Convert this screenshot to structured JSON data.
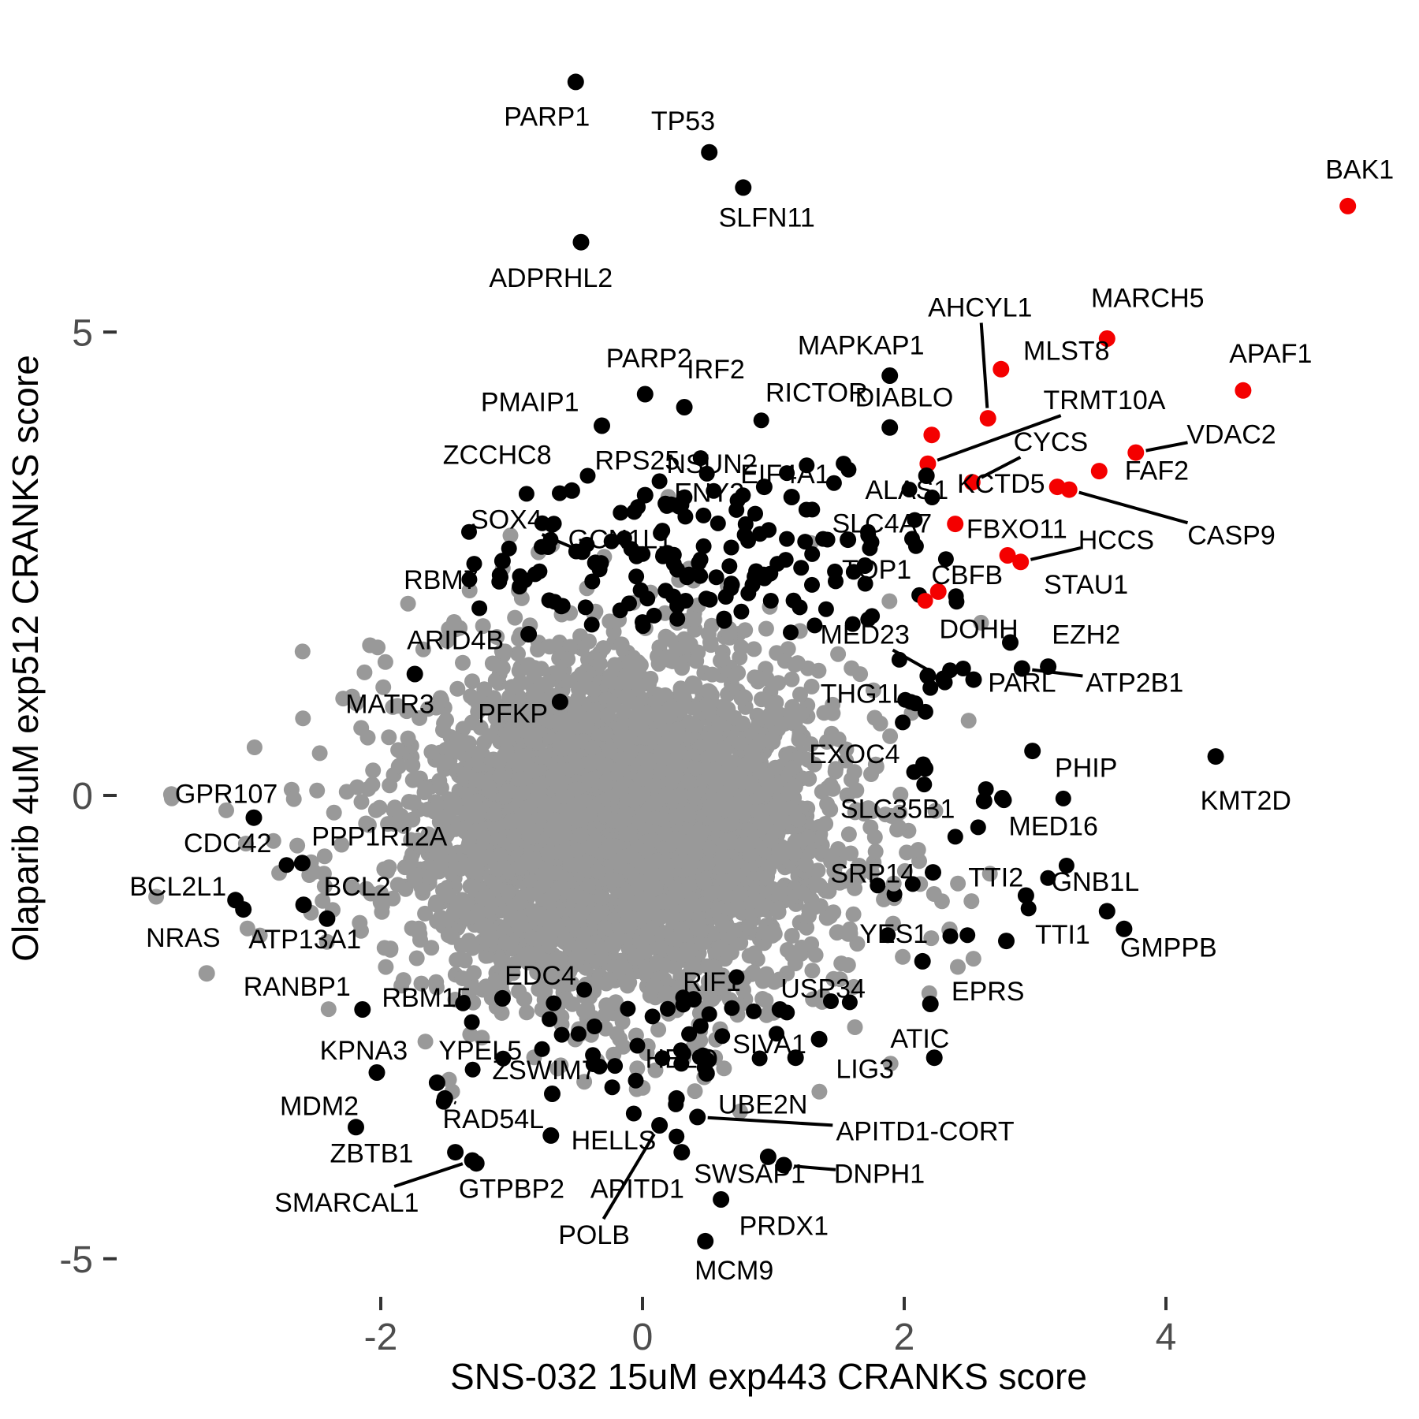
{
  "chart_data": {
    "type": "scatter",
    "title": "",
    "xlabel": "SNS-032 15uM exp443 CRANKS score",
    "ylabel": "Olaparib 4uM exp512 CRANKS score",
    "xlim": [
      -3.9,
      5.9
    ],
    "ylim": [
      -5.6,
      8.3
    ],
    "x_ticks": [
      {
        "v": -2,
        "label": "-2"
      },
      {
        "v": 0,
        "label": "0"
      },
      {
        "v": 2,
        "label": "2"
      },
      {
        "v": 4,
        "label": "4"
      }
    ],
    "y_ticks": [
      {
        "v": 5,
        "label": "5"
      },
      {
        "v": 0,
        "label": "0"
      },
      {
        "v": -5,
        "label": "-5"
      }
    ],
    "grid": false,
    "legend": "none",
    "colors": {
      "background_point": "#999999",
      "hit_point": "#000000",
      "apoptosis_point": "#f40000",
      "tick_text": "#4d4d4d",
      "axis_title": "#000000",
      "label_text": "#000000",
      "leader_line": "#000000"
    },
    "point_radius": {
      "background": 10,
      "labeled": 10.5
    },
    "background_cloud": {
      "seed": 7,
      "gray_core": {
        "n": 3800,
        "cx": -0.12,
        "cy": -0.32,
        "sx": 0.78,
        "sy": 0.9
      },
      "gray_fringe": {
        "n": 260,
        "cx": -0.15,
        "cy": -0.35,
        "sx": 1.15,
        "sy": 1.15,
        "xmin": -3.7,
        "xmax": 2.75,
        "ymin": -3.4,
        "ymax": 2.6
      },
      "black_top": {
        "n": 150,
        "cx": 0.55,
        "cy": 2.55,
        "sx": 0.95,
        "sy": 0.5,
        "xmin": -1.4,
        "xmax": 2.4,
        "ymin": 1.75,
        "ymax": 4.1
      },
      "black_bottom": {
        "n": 42,
        "cx": 0.0,
        "cy": -2.6,
        "sx": 0.75,
        "sy": 0.45,
        "xmin": -1.7,
        "xmax": 1.7,
        "ymin": -3.5,
        "ymax": -1.85
      },
      "black_right": {
        "n": 22,
        "cx": 2.3,
        "cy": 0.1,
        "sx": 0.45,
        "sy": 0.85,
        "xmin": 1.75,
        "xmax": 3.3,
        "ymin": -1.7,
        "ymax": 1.6
      }
    },
    "extra_points": [
      {
        "x": 2.16,
        "y": 2.1,
        "c": "r"
      },
      {
        "x": 2.4,
        "y": 2.09,
        "c": "k"
      },
      {
        "x": 2.35,
        "y": 1.35,
        "c": "k"
      },
      {
        "x": 2.45,
        "y": 1.37,
        "c": "k"
      },
      {
        "x": 2.2,
        "y": 1.16,
        "c": "k"
      },
      {
        "x": 2.31,
        "y": 1.22,
        "c": "k"
      },
      {
        "x": 2.95,
        "y": -1.22,
        "c": "k"
      },
      {
        "x": -2.72,
        "y": -0.75,
        "c": "k"
      },
      {
        "x": 2.06,
        "y": 2.77,
        "c": "k"
      },
      {
        "x": 2.09,
        "y": 2.69,
        "c": "k"
      },
      {
        "x": 0.31,
        "y": -2.18,
        "c": "k"
      },
      {
        "x": 0.85,
        "y": -2.33,
        "c": "k"
      },
      {
        "x": 0.51,
        "y": -2.36,
        "c": "k"
      },
      {
        "x": 0.26,
        "y": -3.68,
        "c": "k"
      },
      {
        "x": 1.44,
        "y": -2.22,
        "c": "k"
      },
      {
        "x": 2.41,
        "y": -0.95,
        "c": "g"
      },
      {
        "x": 1.92,
        "y": -0.95,
        "c": "g"
      }
    ],
    "labeled_points": [
      {
        "g": "PARP1",
        "x": -0.51,
        "y": 7.7,
        "c": "k",
        "lx": -0.73,
        "ly": 7.33
      },
      {
        "g": "TP53",
        "x": 0.51,
        "y": 6.94,
        "c": "k",
        "lx": 0.31,
        "ly": 7.28
      },
      {
        "g": "SLFN11",
        "x": 0.77,
        "y": 6.56,
        "c": "k",
        "lx": 0.95,
        "ly": 6.24
      },
      {
        "g": "ADPRHL2",
        "x": -0.47,
        "y": 5.97,
        "c": "k",
        "lx": -0.7,
        "ly": 5.59
      },
      {
        "g": "BAK1",
        "x": 5.39,
        "y": 6.36,
        "c": "r",
        "lx": 5.48,
        "ly": 6.76
      },
      {
        "g": "MARCH5",
        "x": 3.55,
        "y": 4.93,
        "c": "r",
        "lx": 3.86,
        "ly": 5.37
      },
      {
        "g": "APAF1",
        "x": 4.59,
        "y": 4.37,
        "c": "r",
        "lx": 4.8,
        "ly": 4.77
      },
      {
        "g": "MLST8",
        "x": 2.74,
        "y": 4.6,
        "c": "r",
        "lx": 3.24,
        "ly": 4.8
      },
      {
        "g": "AHCYL1",
        "x": 2.64,
        "y": 4.07,
        "c": "r",
        "lx": 2.58,
        "ly": 5.27,
        "ld": 1
      },
      {
        "g": "DIABLO",
        "x": 2.21,
        "y": 3.89,
        "c": "r",
        "lx": 2.0,
        "ly": 4.3
      },
      {
        "g": "TRMT10A",
        "x": 2.18,
        "y": 3.58,
        "c": "r",
        "lx": 3.53,
        "ly": 4.27,
        "ld": 1
      },
      {
        "g": "CYCS",
        "x": 2.52,
        "y": 3.38,
        "c": "r",
        "lx": 3.12,
        "ly": 3.82,
        "ld": 1
      },
      {
        "g": "KCTD5",
        "x": 3.17,
        "y": 3.33,
        "c": "r",
        "lx": 2.74,
        "ly": 3.37
      },
      {
        "g": "CASP9",
        "x": 3.26,
        "y": 3.3,
        "c": "r",
        "lx": 4.5,
        "ly": 2.81,
        "ld": 1
      },
      {
        "g": "FAF2",
        "x": 3.49,
        "y": 3.5,
        "c": "r",
        "lx": 3.93,
        "ly": 3.51
      },
      {
        "g": "VDAC2",
        "x": 3.77,
        "y": 3.7,
        "c": "r",
        "lx": 4.5,
        "ly": 3.9,
        "ld": 1
      },
      {
        "g": "FBXO11",
        "x": 2.39,
        "y": 2.93,
        "c": "r",
        "lx": 2.86,
        "ly": 2.88
      },
      {
        "g": "HCCS",
        "x": 2.89,
        "y": 2.52,
        "c": "r",
        "lx": 3.62,
        "ly": 2.76,
        "ld": 1
      },
      {
        "g": "STAU1",
        "x": 2.79,
        "y": 2.59,
        "c": "r",
        "lx": 3.39,
        "ly": 2.28
      },
      {
        "g": "CBFB",
        "x": 2.26,
        "y": 2.2,
        "c": "r",
        "lx": 2.48,
        "ly": 2.38
      },
      {
        "g": "DOHH",
        "x": 2.81,
        "y": 1.65,
        "c": "k",
        "lx": 2.57,
        "ly": 1.8
      },
      {
        "g": "EZH2",
        "x": 3.1,
        "y": 1.39,
        "c": "k",
        "lx": 3.39,
        "ly": 1.74
      },
      {
        "g": "MED23",
        "x": 2.3,
        "y": 1.26,
        "c": "k",
        "lx": 1.7,
        "ly": 1.74,
        "ld": 1
      },
      {
        "g": "THG1L",
        "x": 2.18,
        "y": 1.29,
        "c": "k",
        "lx": 1.69,
        "ly": 1.1
      },
      {
        "g": "PARL",
        "x": 2.53,
        "y": 1.25,
        "c": "k",
        "lx": 2.9,
        "ly": 1.22
      },
      {
        "g": "ATP2B1",
        "x": 2.9,
        "y": 1.37,
        "c": "k",
        "lx": 3.76,
        "ly": 1.22,
        "ld": 1
      },
      {
        "g": "EXOC4",
        "x": 2.16,
        "y": 0.29,
        "c": "k",
        "lx": 1.62,
        "ly": 0.45
      },
      {
        "g": "PHIP",
        "x": 2.98,
        "y": 0.48,
        "c": "k",
        "lx": 3.39,
        "ly": 0.3
      },
      {
        "g": "KMT2D",
        "x": 4.38,
        "y": 0.42,
        "c": "k",
        "lx": 4.61,
        "ly": -0.05
      },
      {
        "g": "SLC35B1",
        "x": 2.61,
        "y": -0.06,
        "c": "k",
        "lx": 1.95,
        "ly": -0.14
      },
      {
        "g": "MED16",
        "x": 2.75,
        "y": -0.03,
        "c": "k",
        "lx": 3.14,
        "ly": -0.33
      },
      {
        "g": "SRP14",
        "x": 2.22,
        "y": -0.83,
        "c": "k",
        "lx": 1.76,
        "ly": -0.84
      },
      {
        "g": "TTI2",
        "x": 2.93,
        "y": -1.08,
        "c": "k",
        "lx": 2.7,
        "ly": -0.88
      },
      {
        "g": "GNB1L",
        "x": 3.55,
        "y": -1.25,
        "c": "k",
        "lx": 3.46,
        "ly": -0.93
      },
      {
        "g": "YES1",
        "x": 2.14,
        "y": -1.79,
        "c": "k",
        "lx": 1.92,
        "ly": -1.49
      },
      {
        "g": "TTI1",
        "x": 2.78,
        "y": -1.57,
        "c": "k",
        "lx": 3.21,
        "ly": -1.5
      },
      {
        "g": "GMPPB",
        "x": 3.68,
        "y": -1.44,
        "c": "k",
        "lx": 4.02,
        "ly": -1.64
      },
      {
        "g": "EPRS",
        "x": 2.2,
        "y": -2.25,
        "c": "k",
        "lx": 2.64,
        "ly": -2.11
      },
      {
        "g": "ATIC",
        "x": 2.23,
        "y": -2.83,
        "c": "k",
        "lx": 2.12,
        "ly": -2.62
      },
      {
        "g": "MAPKAP1",
        "x": 1.89,
        "y": 4.53,
        "c": "k",
        "lx": 1.67,
        "ly": 4.86
      },
      {
        "g": "RICTOR",
        "x": 1.89,
        "y": 3.97,
        "c": "k",
        "lx": 1.33,
        "ly": 4.35
      },
      {
        "g": "IRF2",
        "x": 0.32,
        "y": 4.19,
        "c": "k",
        "lx": 0.56,
        "ly": 4.6
      },
      {
        "g": "PARP2",
        "x": 0.02,
        "y": 4.33,
        "c": "k",
        "lx": 0.05,
        "ly": 4.72
      },
      {
        "g": "PMAIP1",
        "x": -0.31,
        "y": 3.99,
        "c": "k",
        "lx": -0.86,
        "ly": 4.25
      },
      {
        "g": "ZCCHC8",
        "x": -0.54,
        "y": 3.29,
        "c": "k",
        "lx": -1.11,
        "ly": 3.68
      },
      {
        "g": "RPS25",
        "x": 0.02,
        "y": 3.24,
        "c": "k",
        "lx": -0.04,
        "ly": 3.62
      },
      {
        "g": "NSUN2",
        "x": 0.28,
        "y": 3.12,
        "c": "k",
        "lx": 0.53,
        "ly": 3.58
      },
      {
        "g": "EIF4A1",
        "x": 1.14,
        "y": 3.22,
        "c": "k",
        "lx": 1.09,
        "ly": 3.47
      },
      {
        "g": "SOX4",
        "x": -0.46,
        "y": 2.63,
        "c": "k",
        "lx": -1.04,
        "ly": 2.98,
        "ld": 1
      },
      {
        "g": "GCN1L1",
        "x": -0.36,
        "y": 2.51,
        "c": "k",
        "lx": -0.17,
        "ly": 2.77
      },
      {
        "g": "ENY2",
        "x": 0.93,
        "y": 3.33,
        "c": "k",
        "lx": 0.51,
        "ly": 3.27
      },
      {
        "g": "RBM7",
        "x": -1.07,
        "y": 2.53,
        "c": "k",
        "lx": -1.54,
        "ly": 2.33
      },
      {
        "g": "ARID4B",
        "x": -0.87,
        "y": 1.74,
        "c": "k",
        "lx": -1.43,
        "ly": 1.68
      },
      {
        "g": "MATR3",
        "x": -1.74,
        "y": 1.31,
        "c": "k",
        "lx": -1.93,
        "ly": 0.99
      },
      {
        "g": "PFKP",
        "x": -0.63,
        "y": 1.01,
        "c": "k",
        "lx": -0.99,
        "ly": 0.89
      },
      {
        "g": "TOP1",
        "x": 1.7,
        "y": 2.48,
        "c": "k",
        "lx": 1.79,
        "ly": 2.44
      },
      {
        "g": "ALAS1",
        "x": 2.17,
        "y": 3.45,
        "c": "k",
        "lx": 2.02,
        "ly": 3.3
      },
      {
        "g": "SLC4A7",
        "x": 1.57,
        "y": 2.76,
        "c": "k",
        "lx": 1.83,
        "ly": 2.94
      },
      {
        "g": "GPR107",
        "x": -3.6,
        "y": 0.01,
        "c": "g",
        "lx": -3.18,
        "ly": 0.02
      },
      {
        "g": "CDC42",
        "x": -2.97,
        "y": -0.24,
        "c": "k",
        "lx": -3.17,
        "ly": -0.51
      },
      {
        "g": "PPP1R12A",
        "x": -2.6,
        "y": -0.73,
        "c": "k",
        "lx": -2.01,
        "ly": -0.44
      },
      {
        "g": "BCL2",
        "x": -2.59,
        "y": -1.18,
        "c": "k",
        "lx": -2.18,
        "ly": -0.98
      },
      {
        "g": "BCL2L1",
        "x": -3.11,
        "y": -1.13,
        "c": "k",
        "lx": -3.55,
        "ly": -0.98
      },
      {
        "g": "NRAS",
        "x": -3.05,
        "y": -1.23,
        "c": "k",
        "lx": -3.51,
        "ly": -1.53
      },
      {
        "g": "ATP13A1",
        "x": -2.41,
        "y": -1.33,
        "c": "k",
        "lx": -2.58,
        "ly": -1.55
      },
      {
        "g": "RANBP1",
        "x": -3.33,
        "y": -1.92,
        "c": "g",
        "lx": -2.64,
        "ly": -2.06
      },
      {
        "g": "RBM15",
        "x": -2.14,
        "y": -2.31,
        "c": "k",
        "lx": -1.65,
        "ly": -2.18
      },
      {
        "g": "KPNA3",
        "x": -2.03,
        "y": -2.99,
        "c": "k",
        "lx": -2.13,
        "ly": -2.75
      },
      {
        "g": "YPEL5",
        "x": -1.57,
        "y": -3.1,
        "c": "k",
        "lx": -1.24,
        "ly": -2.75
      },
      {
        "g": "ZSWIM7",
        "x": -0.69,
        "y": -3.22,
        "c": "k",
        "lx": -0.75,
        "ly": -2.96
      },
      {
        "g": "HELQ",
        "x": 0.49,
        "y": -3.0,
        "c": "k",
        "lx": 0.3,
        "ly": -2.84
      },
      {
        "g": "SIVA1",
        "x": 1.35,
        "y": -2.63,
        "c": "k",
        "lx": 0.97,
        "ly": -2.68
      },
      {
        "g": "LIG3",
        "x": 1.17,
        "y": -2.83,
        "c": "k",
        "lx": 1.7,
        "ly": -2.95
      },
      {
        "g": "RIF1",
        "x": 0.39,
        "y": -2.2,
        "c": "k",
        "lx": 0.53,
        "ly": -2.01
      },
      {
        "g": "USP34",
        "x": 1.05,
        "y": -2.31,
        "c": "k",
        "lx": 1.38,
        "ly": -2.08
      },
      {
        "g": "EDC4",
        "x": -1.07,
        "y": -2.19,
        "c": "k",
        "lx": -0.78,
        "ly": -1.94
      },
      {
        "g": "MDM2",
        "x": -2.19,
        "y": -3.58,
        "c": "k",
        "lx": -2.47,
        "ly": -3.35
      },
      {
        "g": "RAD54L",
        "x": -1.51,
        "y": -3.27,
        "c": "k",
        "lx": -1.14,
        "ly": -3.49,
        "ld": 1
      },
      {
        "g": "ZBTB1",
        "x": -1.43,
        "y": -3.85,
        "c": "k",
        "lx": -2.07,
        "ly": -3.86
      },
      {
        "g": "SMARCAL1",
        "x": -1.3,
        "y": -3.94,
        "c": "k",
        "lx": -2.26,
        "ly": -4.39,
        "ld": 1
      },
      {
        "g": "GTPBP2",
        "x": -1.27,
        "y": -3.97,
        "c": "k",
        "lx": -1.0,
        "ly": -4.24
      },
      {
        "g": "HELLS",
        "x": -0.7,
        "y": -3.67,
        "c": "k",
        "lx": -0.22,
        "ly": -3.72
      },
      {
        "g": "APITD1",
        "x": 0.3,
        "y": -3.85,
        "c": "k",
        "lx": -0.04,
        "ly": -4.24
      },
      {
        "g": "APITD1-CORT",
        "x": 0.42,
        "y": -3.47,
        "c": "k",
        "lx": 2.16,
        "ly": -3.62,
        "ld": 1
      },
      {
        "g": "UBE2N",
        "x": 0.26,
        "y": -3.27,
        "c": "k",
        "lx": 0.92,
        "ly": -3.33
      },
      {
        "g": "SWSAP1",
        "x": 0.96,
        "y": -3.9,
        "c": "k",
        "lx": 0.82,
        "ly": -4.08
      },
      {
        "g": "DNPH1",
        "x": 1.08,
        "y": -3.99,
        "c": "k",
        "lx": 1.81,
        "ly": -4.08,
        "ld": 1
      },
      {
        "g": "PRDX1",
        "x": 0.6,
        "y": -4.36,
        "c": "k",
        "lx": 1.08,
        "ly": -4.64
      },
      {
        "g": "MCM9",
        "x": 0.48,
        "y": -4.81,
        "c": "k",
        "lx": 0.7,
        "ly": -5.12
      },
      {
        "g": "POLB",
        "x": 0.13,
        "y": -3.56,
        "c": "k",
        "lx": -0.37,
        "ly": -4.74,
        "ld": 1
      }
    ]
  }
}
